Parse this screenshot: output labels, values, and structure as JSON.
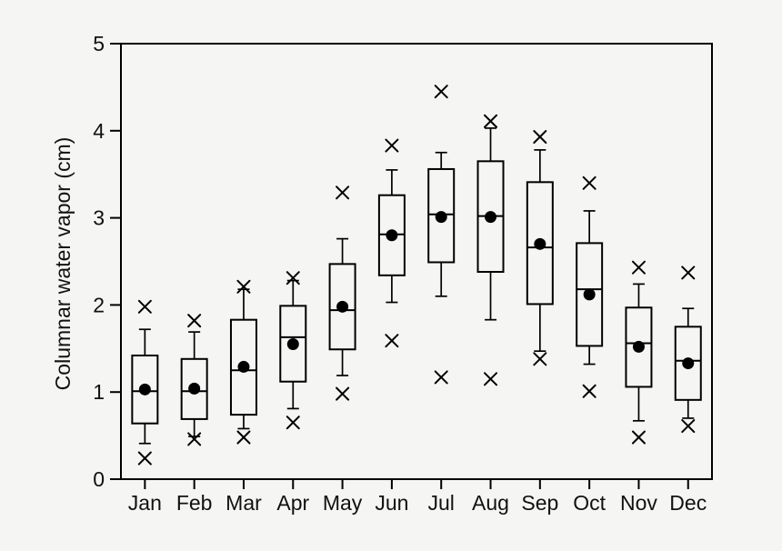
{
  "colors": {
    "background": "#f5f5f3",
    "line": "#000000",
    "text": "#111111"
  },
  "chart_data": {
    "type": "boxplot",
    "title": "",
    "xlabel": "",
    "ylabel": "Columnar water vapor (cm)",
    "ylim": [
      0,
      5
    ],
    "yticks": [
      "0",
      "1",
      "2",
      "3",
      "4",
      "5"
    ],
    "grid": false,
    "legend_position": "none",
    "categories": [
      "Jan",
      "Feb",
      "Mar",
      "Apr",
      "May",
      "Jun",
      "Jul",
      "Aug",
      "Sep",
      "Oct",
      "Nov",
      "Dec"
    ],
    "series": [
      {
        "month": "Jan",
        "outlier_high": 1.98,
        "whisker_high": 1.72,
        "q3": 1.42,
        "mean": 1.03,
        "median": 1.01,
        "q1": 0.64,
        "whisker_low": 0.41,
        "outlier_low": 0.24
      },
      {
        "month": "Feb",
        "outlier_high": 1.82,
        "whisker_high": 1.69,
        "q3": 1.38,
        "mean": 1.04,
        "median": 1.01,
        "q1": 0.69,
        "whisker_low": 0.49,
        "outlier_low": 0.46
      },
      {
        "month": "Mar",
        "outlier_high": 2.21,
        "whisker_high": 2.18,
        "q3": 1.83,
        "mean": 1.29,
        "median": 1.25,
        "q1": 0.74,
        "whisker_low": 0.58,
        "outlier_low": 0.48
      },
      {
        "month": "Apr",
        "outlier_high": 2.31,
        "whisker_high": 2.28,
        "q3": 1.99,
        "mean": 1.55,
        "median": 1.63,
        "q1": 1.12,
        "whisker_low": 0.81,
        "outlier_low": 0.65
      },
      {
        "month": "May",
        "outlier_high": 3.29,
        "whisker_high": 2.76,
        "q3": 2.47,
        "mean": 1.98,
        "median": 1.94,
        "q1": 1.49,
        "whisker_low": 1.19,
        "outlier_low": 0.98
      },
      {
        "month": "Jun",
        "outlier_high": 3.83,
        "whisker_high": 3.55,
        "q3": 3.26,
        "mean": 2.8,
        "median": 2.81,
        "q1": 2.34,
        "whisker_low": 2.03,
        "outlier_low": 1.59
      },
      {
        "month": "Jul",
        "outlier_high": 4.45,
        "whisker_high": 3.75,
        "q3": 3.56,
        "mean": 3.01,
        "median": 3.04,
        "q1": 2.49,
        "whisker_low": 2.1,
        "outlier_low": 1.17
      },
      {
        "month": "Aug",
        "outlier_high": 4.11,
        "whisker_high": 4.03,
        "q3": 3.65,
        "mean": 3.01,
        "median": 3.02,
        "q1": 2.38,
        "whisker_low": 1.83,
        "outlier_low": 1.15
      },
      {
        "month": "Sep",
        "outlier_high": 3.93,
        "whisker_high": 3.78,
        "q3": 3.41,
        "mean": 2.7,
        "median": 2.66,
        "q1": 2.01,
        "whisker_low": 1.47,
        "outlier_low": 1.38
      },
      {
        "month": "Oct",
        "outlier_high": 3.4,
        "whisker_high": 3.08,
        "q3": 2.71,
        "mean": 2.12,
        "median": 2.18,
        "q1": 1.53,
        "whisker_low": 1.32,
        "outlier_low": 1.01
      },
      {
        "month": "Nov",
        "outlier_high": 2.43,
        "whisker_high": 2.24,
        "q3": 1.97,
        "mean": 1.52,
        "median": 1.56,
        "q1": 1.06,
        "whisker_low": 0.67,
        "outlier_low": 0.48
      },
      {
        "month": "Dec",
        "outlier_high": 2.37,
        "whisker_high": 1.96,
        "q3": 1.75,
        "mean": 1.33,
        "median": 1.36,
        "q1": 0.91,
        "whisker_low": 0.7,
        "outlier_low": 0.61
      }
    ]
  }
}
